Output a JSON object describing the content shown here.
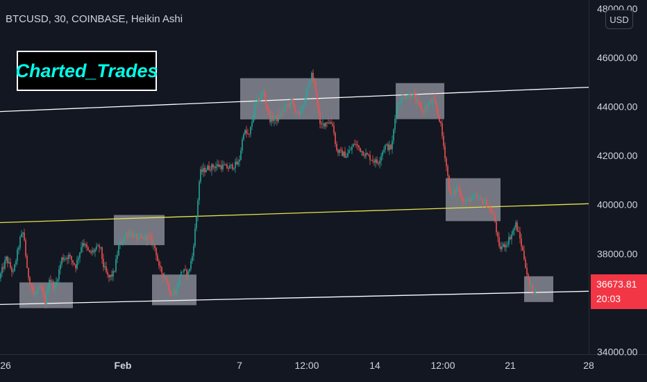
{
  "header": {
    "symbol_line": "BTCUSD, 30, COINBASE, Heikin Ashi"
  },
  "logo": {
    "text": "Charted_Trades"
  },
  "currency_button": {
    "label": "USD"
  },
  "last_price": {
    "value": "36673.81",
    "countdown": "20:03",
    "color": "#f23645"
  },
  "colors": {
    "up": "#26a69a",
    "down": "#ef5350",
    "channel": "#ffffff",
    "midline": "#e8e44a",
    "zone": "#9598a1",
    "background": "#131722",
    "axis_text": "#d1d4dc"
  },
  "chart_data": {
    "type": "candlestick",
    "y_ticks": [
      "48000.00",
      "46000.00",
      "44000.00",
      "42000.00",
      "40000.00",
      "38000.00",
      "34000.00"
    ],
    "x_ticks": [
      "26",
      "Feb",
      "7",
      "12:00",
      "14",
      "12:00",
      "21",
      "28"
    ],
    "ylim": [
      33900,
      48350
    ],
    "x_index_range": [
      0,
      860
    ],
    "x_tick_positions": [
      8,
      177,
      345,
      442,
      540,
      638,
      735,
      848
    ],
    "trendlines": [
      {
        "role": "upper-channel",
        "color": "#ffffff",
        "points": [
          [
            0,
            43800
          ],
          [
            848,
            44790
          ]
        ]
      },
      {
        "role": "midline",
        "color": "#e8e44a",
        "points": [
          [
            0,
            39270
          ],
          [
            848,
            40040
          ]
        ]
      },
      {
        "role": "lower-channel",
        "color": "#ffffff",
        "points": [
          [
            0,
            35930
          ],
          [
            848,
            36470
          ]
        ]
      }
    ],
    "zones": [
      {
        "x": [
          28,
          105
        ],
        "y": [
          35780,
          36830
        ]
      },
      {
        "x": [
          164,
          237
        ],
        "y": [
          38350,
          39580
        ]
      },
      {
        "x": [
          219,
          283
        ],
        "y": [
          35900,
          37150
        ]
      },
      {
        "x": [
          346,
          489
        ],
        "y": [
          43480,
          45160
        ]
      },
      {
        "x": [
          570,
          640
        ],
        "y": [
          43490,
          44960
        ]
      },
      {
        "x": [
          642,
          721
        ],
        "y": [
          39330,
          41080
        ]
      },
      {
        "x": [
          755,
          797
        ],
        "y": [
          36030,
          37080
        ]
      }
    ],
    "price_path": [
      [
        0,
        37000
      ],
      [
        10,
        37800
      ],
      [
        20,
        37200
      ],
      [
        30,
        38600
      ],
      [
        35,
        38900
      ],
      [
        40,
        37300
      ],
      [
        50,
        36300
      ],
      [
        60,
        36600
      ],
      [
        66,
        36000
      ],
      [
        72,
        37000
      ],
      [
        80,
        36600
      ],
      [
        90,
        37800
      ],
      [
        100,
        37900
      ],
      [
        110,
        37500
      ],
      [
        120,
        38500
      ],
      [
        130,
        38000
      ],
      [
        145,
        38300
      ],
      [
        150,
        37500
      ],
      [
        157,
        37000
      ],
      [
        165,
        37200
      ],
      [
        172,
        38300
      ],
      [
        185,
        38900
      ],
      [
        200,
        38600
      ],
      [
        215,
        38700
      ],
      [
        225,
        38200
      ],
      [
        230,
        37400
      ],
      [
        240,
        37000
      ],
      [
        247,
        36300
      ],
      [
        255,
        36500
      ],
      [
        262,
        37300
      ],
      [
        272,
        37200
      ],
      [
        278,
        37900
      ],
      [
        284,
        39500
      ],
      [
        289,
        41300
      ],
      [
        300,
        41500
      ],
      [
        315,
        41600
      ],
      [
        330,
        41500
      ],
      [
        345,
        41700
      ],
      [
        352,
        43000
      ],
      [
        360,
        42800
      ],
      [
        368,
        44000
      ],
      [
        380,
        44600
      ],
      [
        390,
        43500
      ],
      [
        400,
        43500
      ],
      [
        410,
        43900
      ],
      [
        420,
        44200
      ],
      [
        432,
        43600
      ],
      [
        440,
        44300
      ],
      [
        450,
        45300
      ],
      [
        456,
        44700
      ],
      [
        462,
        43200
      ],
      [
        472,
        43400
      ],
      [
        480,
        43300
      ],
      [
        486,
        42200
      ],
      [
        500,
        42000
      ],
      [
        512,
        42500
      ],
      [
        525,
        42100
      ],
      [
        545,
        41700
      ],
      [
        555,
        42400
      ],
      [
        565,
        42300
      ],
      [
        572,
        44000
      ],
      [
        580,
        44400
      ],
      [
        595,
        44500
      ],
      [
        610,
        43800
      ],
      [
        625,
        44300
      ],
      [
        635,
        43400
      ],
      [
        642,
        42000
      ],
      [
        650,
        40300
      ],
      [
        660,
        40700
      ],
      [
        670,
        40100
      ],
      [
        685,
        40300
      ],
      [
        700,
        40100
      ],
      [
        713,
        39500
      ],
      [
        720,
        38200
      ],
      [
        730,
        38400
      ],
      [
        738,
        38800
      ],
      [
        744,
        39200
      ],
      [
        750,
        38600
      ],
      [
        757,
        37700
      ],
      [
        763,
        36700
      ],
      [
        770,
        36500
      ]
    ]
  }
}
